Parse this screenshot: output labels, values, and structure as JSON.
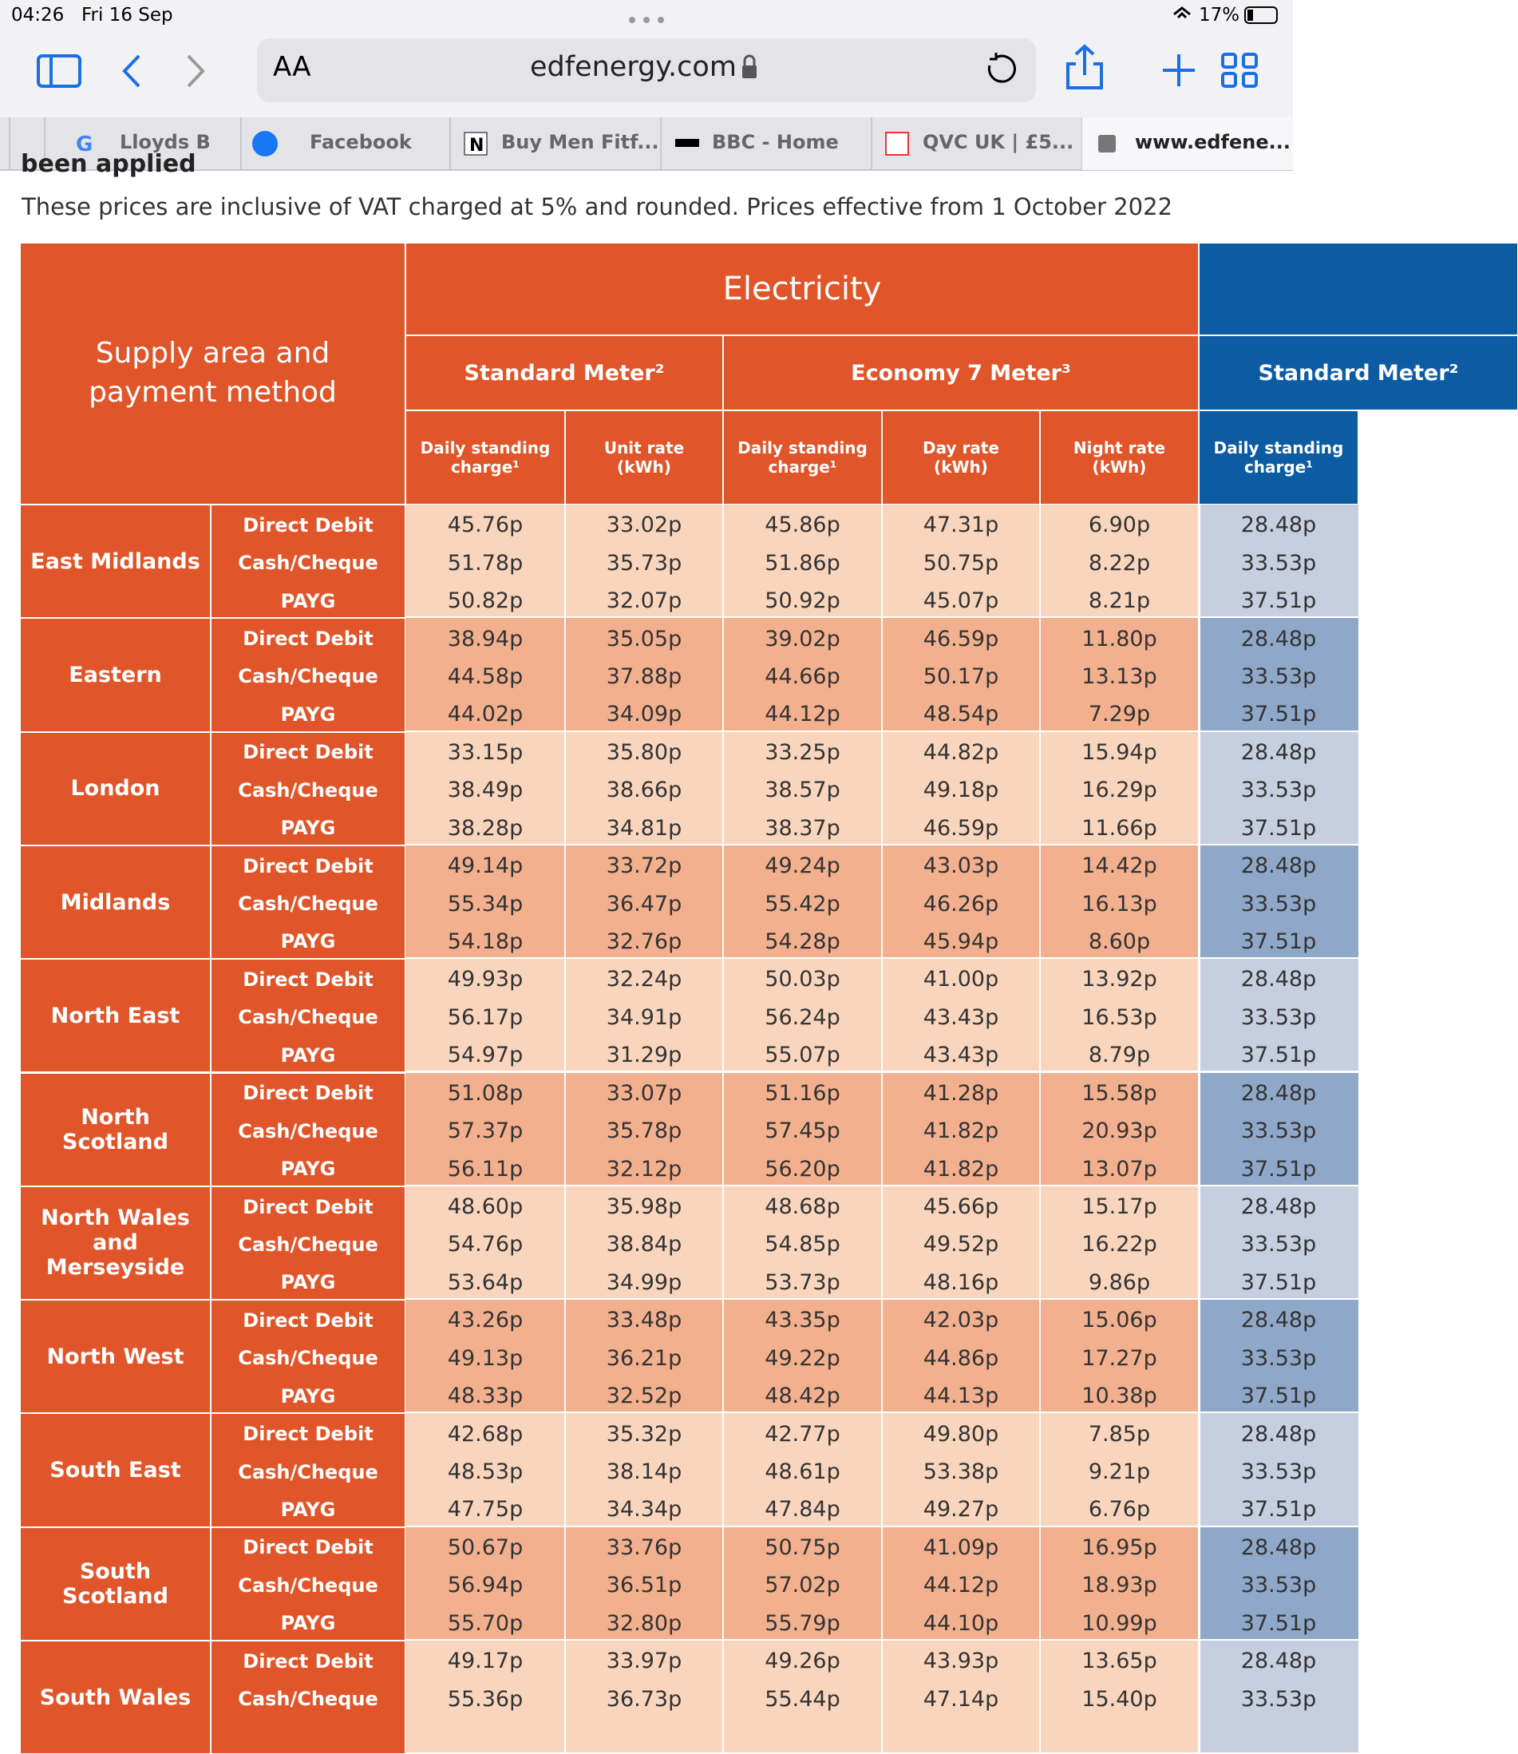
{
  "status": {
    "time": "04:26",
    "date": "Fri 16 Sep",
    "battery": "17%"
  },
  "toolbar": {
    "text_size": "AA",
    "url": "edfenergy.com"
  },
  "tabs": [
    "Lloyds B",
    "Facebook",
    "Buy Men Fitf...",
    "BBC - Home",
    "QVC UK | £5...",
    "www.edfene..."
  ],
  "page": {
    "heading": "been applied",
    "note": "These prices are inclusive of VAT charged at 5% and rounded. Prices effective from 1 October 2022"
  },
  "table": {
    "corner": "Supply area and payment method",
    "electricity": "Electricity",
    "standard": "Standard Meter²",
    "economy": "Economy 7 Meter³",
    "columns": [
      "Daily standing charge¹",
      "Unit rate (kWh)",
      "Daily standing charge¹",
      "Day rate (kWh)",
      "Night rate (kWh)"
    ],
    "gas_standard": "Standard Meter²",
    "gas_column": "Daily standing charge¹",
    "regions": [
      {
        "name": "East Midlands",
        "rows": [
          [
            "Direct Debit",
            "45.76p",
            "33.02p",
            "45.86p",
            "47.31p",
            "6.90p",
            "28.48p"
          ],
          [
            "Cash/Cheque",
            "51.78p",
            "35.73p",
            "51.86p",
            "50.75p",
            "8.22p",
            "33.53p"
          ],
          [
            "PAYG",
            "50.82p",
            "32.07p",
            "50.92p",
            "45.07p",
            "8.21p",
            "37.51p"
          ]
        ]
      },
      {
        "name": "Eastern",
        "rows": [
          [
            "Direct Debit",
            "38.94p",
            "35.05p",
            "39.02p",
            "46.59p",
            "11.80p",
            "28.48p"
          ],
          [
            "Cash/Cheque",
            "44.58p",
            "37.88p",
            "44.66p",
            "50.17p",
            "13.13p",
            "33.53p"
          ],
          [
            "PAYG",
            "44.02p",
            "34.09p",
            "44.12p",
            "48.54p",
            "7.29p",
            "37.51p"
          ]
        ]
      },
      {
        "name": "London",
        "rows": [
          [
            "Direct Debit",
            "33.15p",
            "35.80p",
            "33.25p",
            "44.82p",
            "15.94p",
            "28.48p"
          ],
          [
            "Cash/Cheque",
            "38.49p",
            "38.66p",
            "38.57p",
            "49.18p",
            "16.29p",
            "33.53p"
          ],
          [
            "PAYG",
            "38.28p",
            "34.81p",
            "38.37p",
            "46.59p",
            "11.66p",
            "37.51p"
          ]
        ]
      },
      {
        "name": "Midlands",
        "rows": [
          [
            "Direct Debit",
            "49.14p",
            "33.72p",
            "49.24p",
            "43.03p",
            "14.42p",
            "28.48p"
          ],
          [
            "Cash/Cheque",
            "55.34p",
            "36.47p",
            "55.42p",
            "46.26p",
            "16.13p",
            "33.53p"
          ],
          [
            "PAYG",
            "54.18p",
            "32.76p",
            "54.28p",
            "45.94p",
            "8.60p",
            "37.51p"
          ]
        ]
      },
      {
        "name": "North East",
        "rows": [
          [
            "Direct Debit",
            "49.93p",
            "32.24p",
            "50.03p",
            "41.00p",
            "13.92p",
            "28.48p"
          ],
          [
            "Cash/Cheque",
            "56.17p",
            "34.91p",
            "56.24p",
            "43.43p",
            "16.53p",
            "33.53p"
          ],
          [
            "PAYG",
            "54.97p",
            "31.29p",
            "55.07p",
            "43.43p",
            "8.79p",
            "37.51p"
          ]
        ]
      },
      {
        "name": "North Scotland",
        "rows": [
          [
            "Direct Debit",
            "51.08p",
            "33.07p",
            "51.16p",
            "41.28p",
            "15.58p",
            "28.48p"
          ],
          [
            "Cash/Cheque",
            "57.37p",
            "35.78p",
            "57.45p",
            "41.82p",
            "20.93p",
            "33.53p"
          ],
          [
            "PAYG",
            "56.11p",
            "32.12p",
            "56.20p",
            "41.82p",
            "13.07p",
            "37.51p"
          ]
        ]
      },
      {
        "name": "North Wales and Merseyside",
        "rows": [
          [
            "Direct Debit",
            "48.60p",
            "35.98p",
            "48.68p",
            "45.66p",
            "15.17p",
            "28.48p"
          ],
          [
            "Cash/Cheque",
            "54.76p",
            "38.84p",
            "54.85p",
            "49.52p",
            "16.22p",
            "33.53p"
          ],
          [
            "PAYG",
            "53.64p",
            "34.99p",
            "53.73p",
            "48.16p",
            "9.86p",
            "37.51p"
          ]
        ]
      },
      {
        "name": "North West",
        "rows": [
          [
            "Direct Debit",
            "43.26p",
            "33.48p",
            "43.35p",
            "42.03p",
            "15.06p",
            "28.48p"
          ],
          [
            "Cash/Cheque",
            "49.13p",
            "36.21p",
            "49.22p",
            "44.86p",
            "17.27p",
            "33.53p"
          ],
          [
            "PAYG",
            "48.33p",
            "32.52p",
            "48.42p",
            "44.13p",
            "10.38p",
            "37.51p"
          ]
        ]
      },
      {
        "name": "South East",
        "rows": [
          [
            "Direct Debit",
            "42.68p",
            "35.32p",
            "42.77p",
            "49.80p",
            "7.85p",
            "28.48p"
          ],
          [
            "Cash/Cheque",
            "48.53p",
            "38.14p",
            "48.61p",
            "53.38p",
            "9.21p",
            "33.53p"
          ],
          [
            "PAYG",
            "47.75p",
            "34.34p",
            "47.84p",
            "49.27p",
            "6.76p",
            "37.51p"
          ]
        ]
      },
      {
        "name": "South Scotland",
        "rows": [
          [
            "Direct Debit",
            "50.67p",
            "33.76p",
            "50.75p",
            "41.09p",
            "16.95p",
            "28.48p"
          ],
          [
            "Cash/Cheque",
            "56.94p",
            "36.51p",
            "57.02p",
            "44.12p",
            "18.93p",
            "33.53p"
          ],
          [
            "PAYG",
            "55.70p",
            "32.80p",
            "55.79p",
            "44.10p",
            "10.99p",
            "37.51p"
          ]
        ]
      },
      {
        "name": "South Wales",
        "rows": [
          [
            "Direct Debit",
            "49.17p",
            "33.97p",
            "49.26p",
            "43.93p",
            "13.65p",
            "28.48p"
          ],
          [
            "Cash/Cheque",
            "55.36p",
            "36.73p",
            "55.44p",
            "47.14p",
            "15.40p",
            "33.53p"
          ]
        ]
      }
    ]
  }
}
